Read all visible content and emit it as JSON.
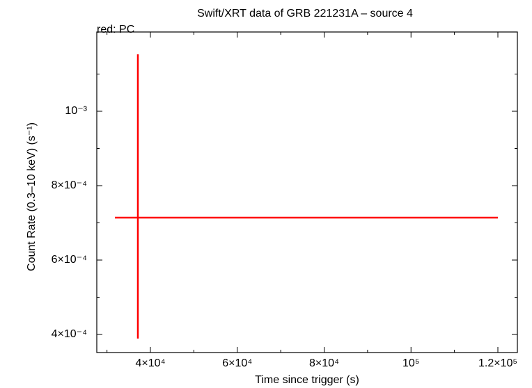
{
  "chart_data": {
    "type": "errorbar",
    "title": "Swift/XRT data of GRB 221231A – source 4",
    "subtitle": "red: PC",
    "xlabel": "Time since trigger (s)",
    "ylabel": "Count Rate (0.3–10 keV) (s⁻¹)",
    "xlim": [
      27655,
      124490
    ],
    "ylim": [
      0.0003514,
      0.0012131
    ],
    "xticks": [
      {
        "value": 40000,
        "label": "4×10⁴"
      },
      {
        "value": 60000,
        "label": "6×10⁴"
      },
      {
        "value": 80000,
        "label": "8×10⁴"
      },
      {
        "value": 100000,
        "label": "10⁵"
      },
      {
        "value": 120000,
        "label": "1.2×10⁵"
      }
    ],
    "xticks_minor": [
      30000,
      50000,
      70000,
      90000,
      110000
    ],
    "yticks": [
      {
        "value": 0.0004,
        "label": "4×10⁻⁴"
      },
      {
        "value": 0.0006,
        "label": "6×10⁻⁴"
      },
      {
        "value": 0.0008,
        "label": "8×10⁻⁴"
      },
      {
        "value": 0.001,
        "label": "10⁻³"
      }
    ],
    "yticks_minor": [
      0.0005,
      0.0007,
      0.0009,
      0.0011
    ],
    "series": [
      {
        "name": "PC",
        "color": "#ff0000",
        "x": [
          37114
        ],
        "xerr_minus": [
          5290
        ],
        "xerr_plus": [
          82886
        ],
        "values": [
          0.000714
        ],
        "yerr_minus": [
          0.000325
        ],
        "yerr_plus": [
          0.000439
        ]
      }
    ]
  }
}
